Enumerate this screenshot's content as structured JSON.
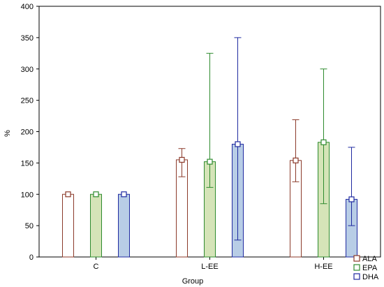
{
  "chart_data": {
    "type": "bar",
    "title": "",
    "xlabel": "Group",
    "ylabel": "%",
    "ylim": [
      0,
      400
    ],
    "yticks": [
      0,
      50,
      100,
      150,
      200,
      250,
      300,
      350,
      400
    ],
    "grid": false,
    "legend_position": "bottom-right",
    "categories": [
      "C",
      "L-EE",
      "H-EE"
    ],
    "series": [
      {
        "name": "ALA",
        "color": "#8b3a2a",
        "fill": "#ffffff",
        "values": [
          100,
          155,
          154
        ],
        "error_low": [
          100,
          128,
          120
        ],
        "error_high": [
          100,
          173,
          219
        ]
      },
      {
        "name": "EPA",
        "color": "#2e8b2e",
        "fill": "#d5e4b8",
        "values": [
          100,
          152,
          183
        ],
        "error_low": [
          100,
          111,
          85
        ],
        "error_high": [
          100,
          325,
          300
        ]
      },
      {
        "name": "DHA",
        "color": "#1f2aa0",
        "fill": "#b8cde6",
        "values": [
          100,
          180,
          92
        ],
        "error_low": [
          100,
          27,
          50
        ],
        "error_high": [
          100,
          350,
          175
        ]
      }
    ]
  }
}
